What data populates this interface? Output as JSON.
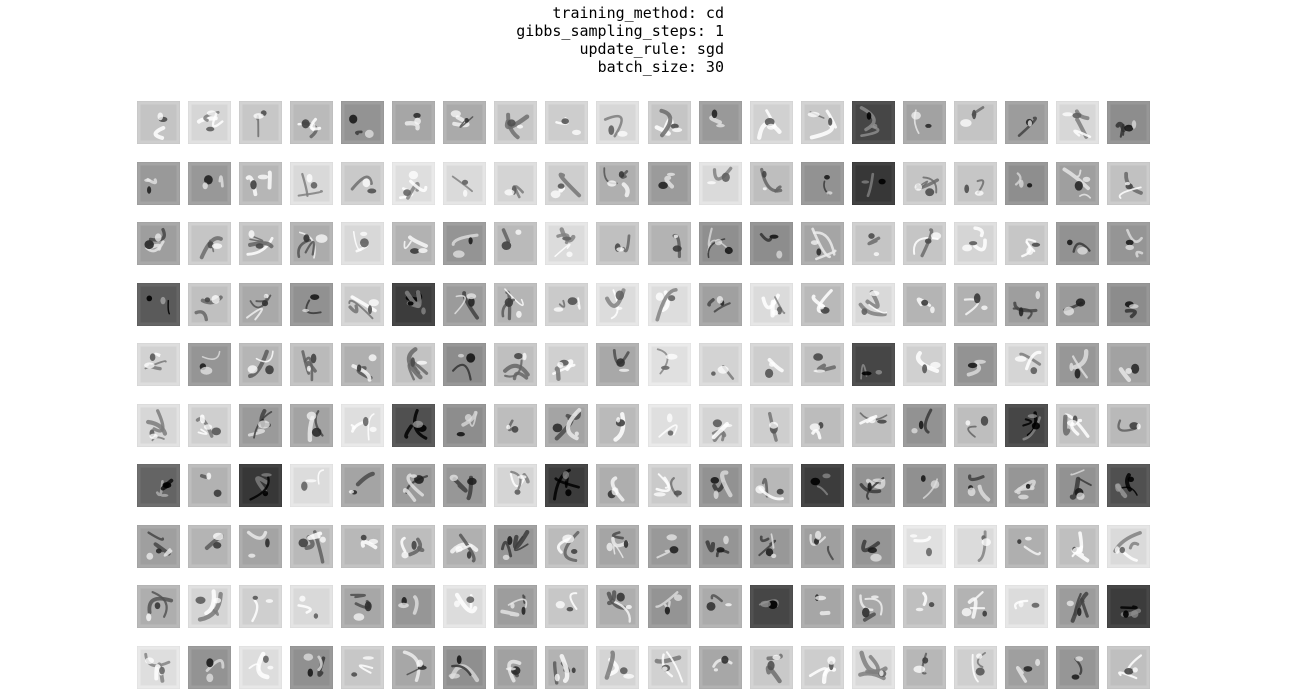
{
  "header": {
    "lines": [
      "training_method: cd",
      "gibbs_sampling_steps: 1",
      "update_rule: sgd",
      "batch_size: 30"
    ]
  },
  "grid": {
    "rows": 10,
    "cols": 20,
    "tile_label": "rbm hidden unit weight filter (28x28 grayscale)"
  },
  "colors": {
    "background": "#ffffff",
    "text": "#000000"
  }
}
